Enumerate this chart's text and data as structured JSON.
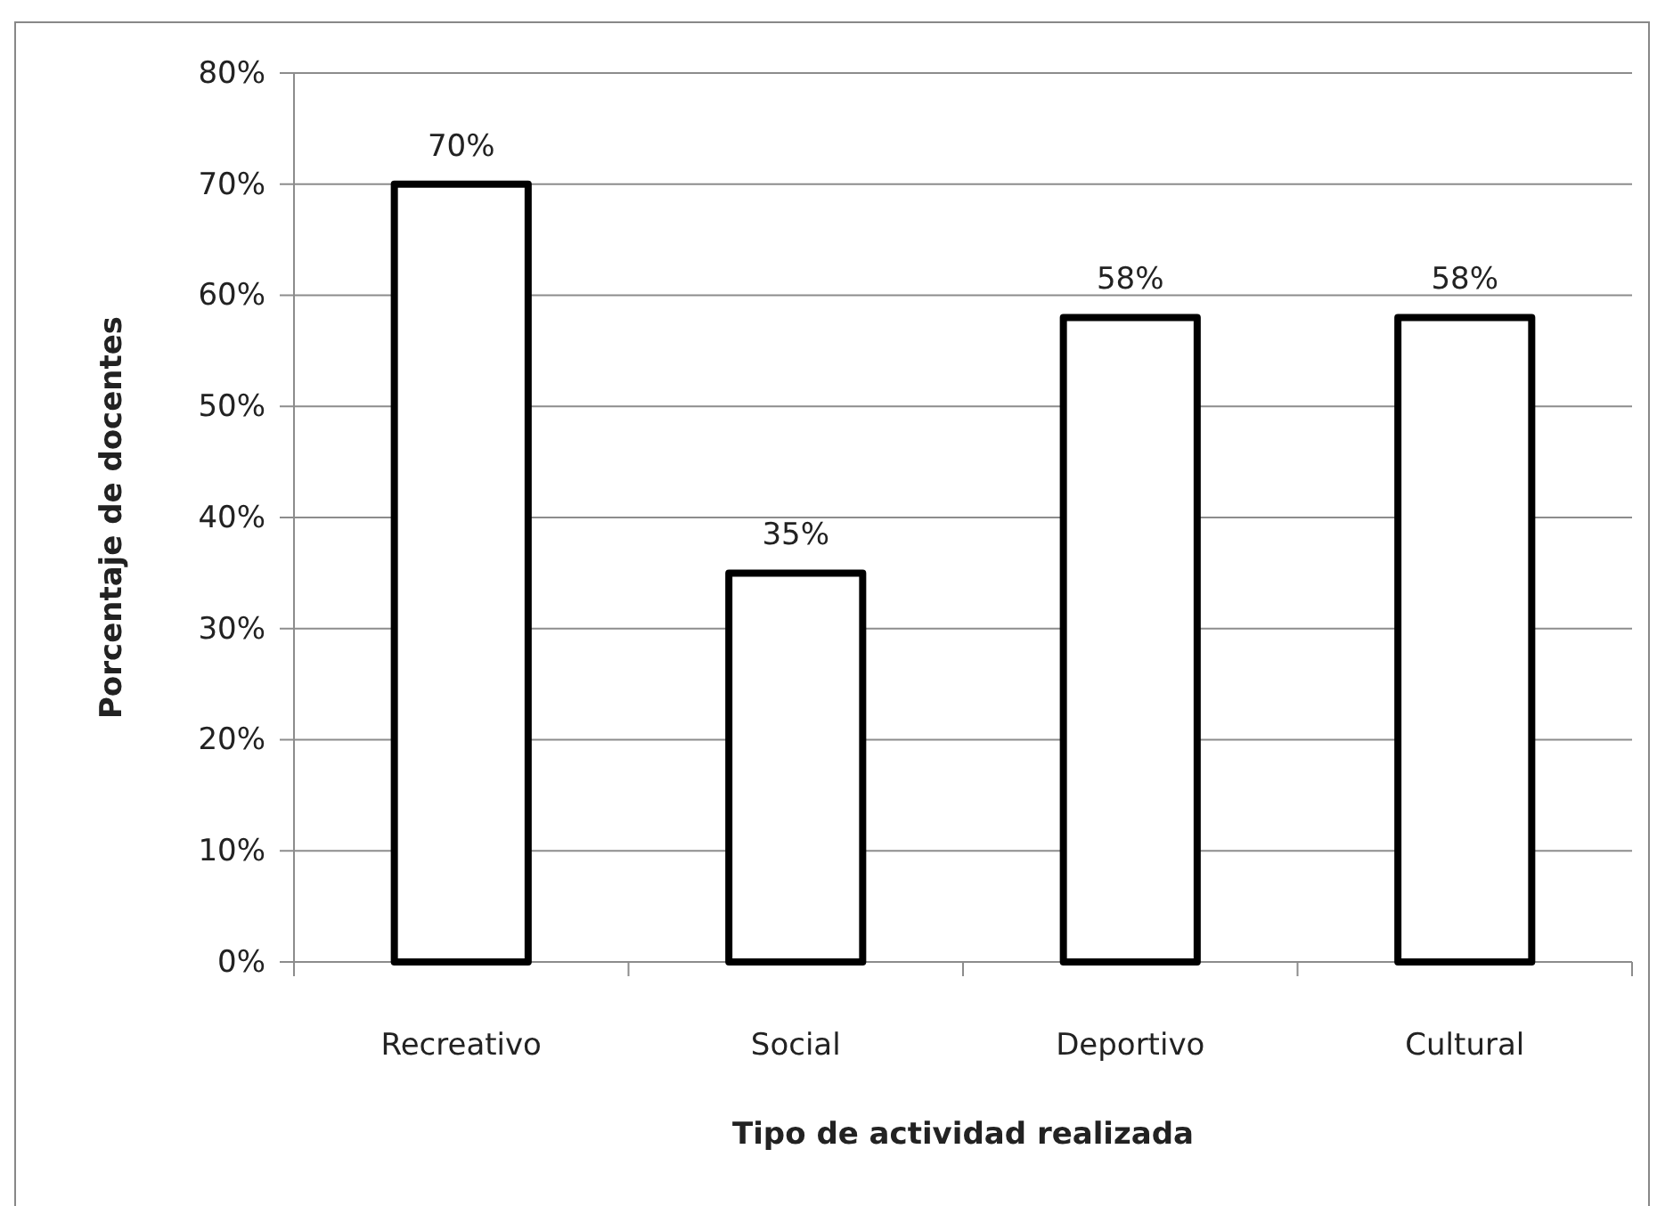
{
  "chart_data": {
    "type": "bar",
    "xlabel": "Tipo de actividad realizada",
    "ylabel": "Porcentaje de docentes",
    "categories": [
      "Recreativo",
      "Social",
      "Deportivo",
      "Cultural"
    ],
    "values": [
      70,
      35,
      58,
      58
    ],
    "value_labels": [
      "70%",
      "35%",
      "58%",
      "58%"
    ],
    "color": "#ffffff",
    "ylim": [
      0,
      80
    ],
    "yticks": [
      {
        "value": 0,
        "label": "0%"
      },
      {
        "value": 10,
        "label": "10%"
      },
      {
        "value": 20,
        "label": "20%"
      },
      {
        "value": 30,
        "label": "30%"
      },
      {
        "value": 40,
        "label": "40%"
      },
      {
        "value": 50,
        "label": "50%"
      },
      {
        "value": 60,
        "label": "60%"
      },
      {
        "value": 70,
        "label": "70%"
      },
      {
        "value": 80,
        "label": "80%"
      }
    ],
    "grid": "y"
  }
}
